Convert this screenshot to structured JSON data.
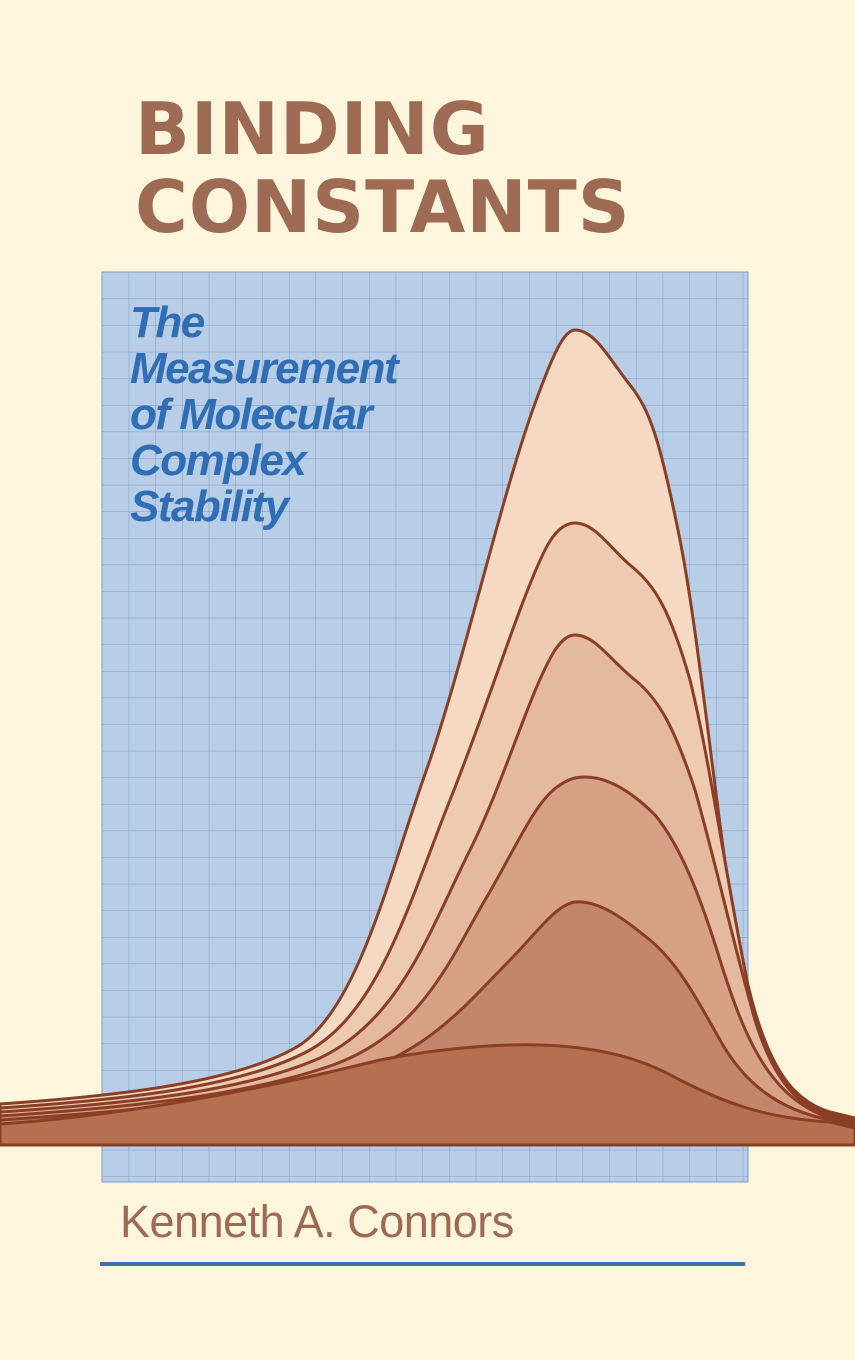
{
  "title": {
    "line1": "BINDING",
    "line2": "CONSTANTS"
  },
  "subtitle": {
    "line1": "The",
    "line2": "Measurement",
    "line3": "of Molecular",
    "line4": "Complex",
    "line5": "Stability"
  },
  "author": "Kenneth A. Connors",
  "colors": {
    "background": "#fdf6dd",
    "title": "#9e6a53",
    "subtitle": "#2f6db4",
    "grid_fill": "#b8cde6",
    "grid_lines": "#7e9bc9",
    "curve_line": "#8a3e26",
    "rule": "#3a70ab"
  },
  "illustration": {
    "description_icon": "stacked-absorbance-curves",
    "curve_count": 6
  }
}
